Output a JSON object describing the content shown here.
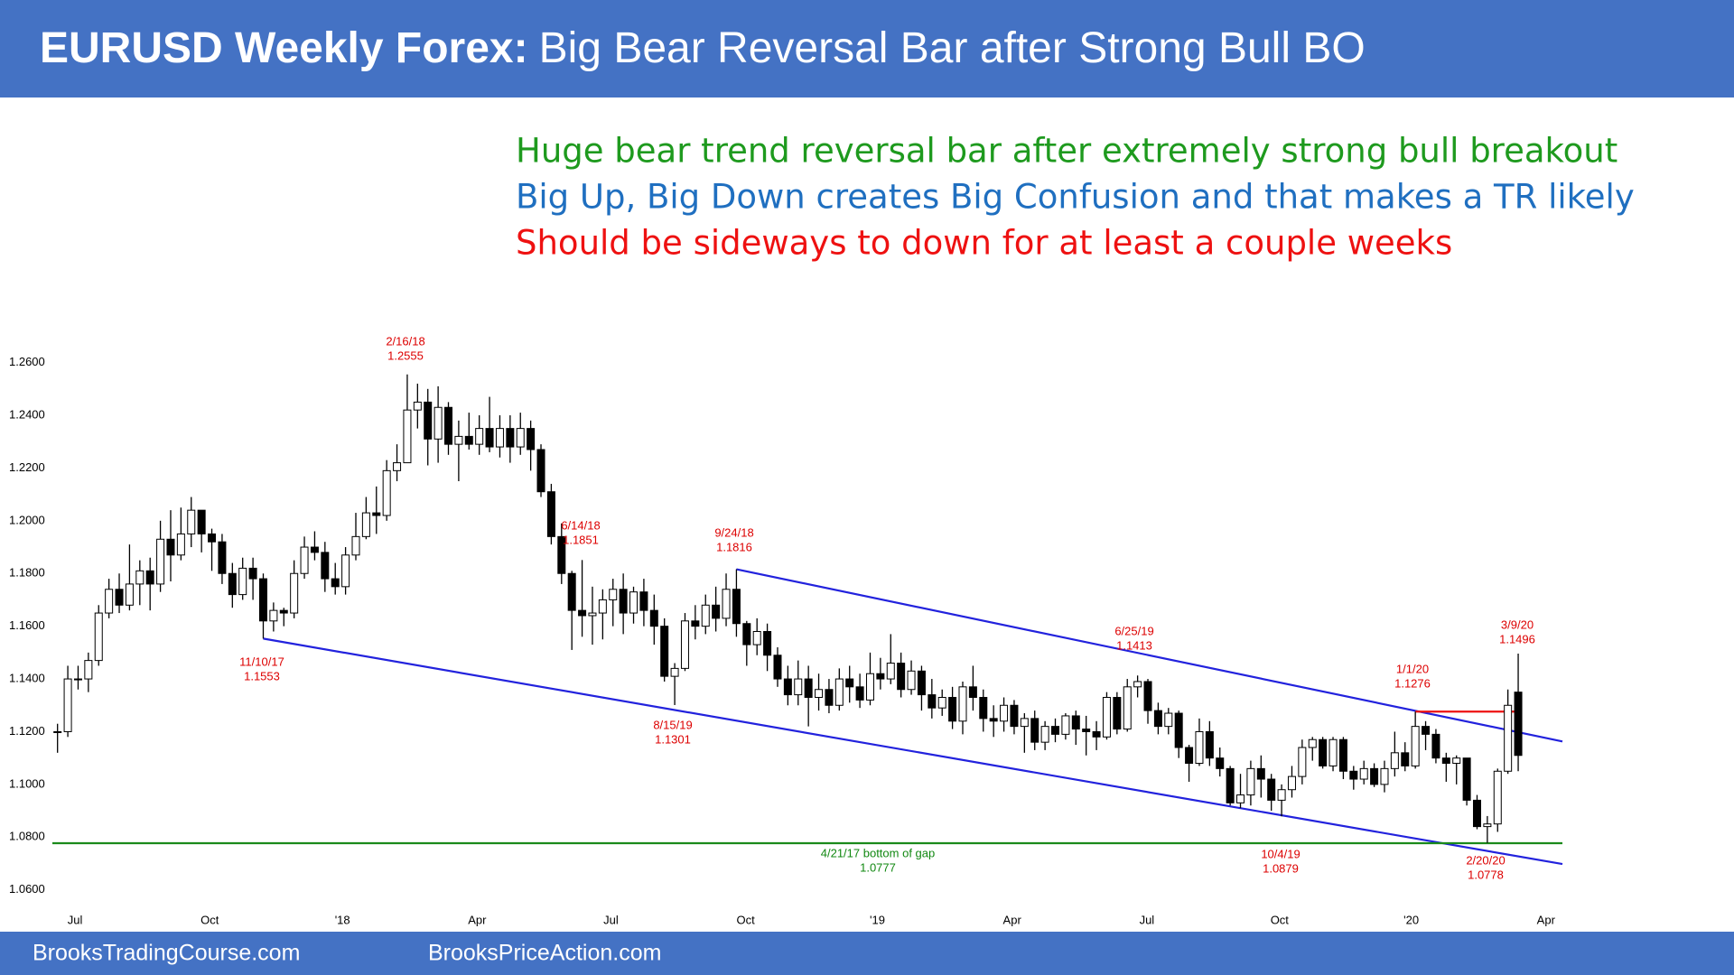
{
  "chart_data": {
    "type": "candlestick",
    "title": [
      "EURUSD Weekly Forex:",
      "Big Bear Reversal Bar after Strong Bull BO"
    ],
    "notes": [
      {
        "text": "Huge bear trend reversal bar after extremely strong bull breakout",
        "color": "#1e9a1e"
      },
      {
        "text": "Big Up, Big Down creates Big Confusion and that makes a TR likely",
        "color": "#1f6fc0"
      },
      {
        "text": "Should be sideways to down for at least a couple weeks",
        "color": "#ee1111"
      }
    ],
    "up_color": "#ffffff",
    "down_color": "#000000",
    "ylim": [
      1.055,
      1.27
    ],
    "yticks": [
      {
        "value": 1.06,
        "label": "1.0600"
      },
      {
        "value": 1.08,
        "label": "1.0800"
      },
      {
        "value": 1.1,
        "label": "1.1000"
      },
      {
        "value": 1.12,
        "label": "1.1200"
      },
      {
        "value": 1.14,
        "label": "1.1400"
      },
      {
        "value": 1.16,
        "label": "1.1600"
      },
      {
        "value": 1.18,
        "label": "1.1800"
      },
      {
        "value": 1.2,
        "label": "1.2000"
      },
      {
        "value": 1.22,
        "label": "1.2200"
      },
      {
        "value": 1.24,
        "label": "1.2400"
      },
      {
        "value": 1.26,
        "label": "1.2600"
      }
    ],
    "xlim": [
      -1,
      147
    ],
    "xticks": [
      {
        "value": 1.7,
        "label": "Jul"
      },
      {
        "value": 14.8,
        "label": "Oct"
      },
      {
        "value": 27.7,
        "label": "'18"
      },
      {
        "value": 40.8,
        "label": "Apr"
      },
      {
        "value": 53.8,
        "label": "Jul"
      },
      {
        "value": 66.9,
        "label": "Oct"
      },
      {
        "value": 79.7,
        "label": "'19"
      },
      {
        "value": 92.8,
        "label": "Apr"
      },
      {
        "value": 105.9,
        "label": "Jul"
      },
      {
        "value": 118.8,
        "label": "Oct"
      },
      {
        "value": 131.6,
        "label": "'20"
      },
      {
        "value": 144.7,
        "label": "Apr"
      }
    ],
    "ohlc": [
      [
        1.12,
        1.123,
        1.112,
        1.12
      ],
      [
        1.12,
        1.145,
        1.118,
        1.14
      ],
      [
        1.14,
        1.145,
        1.136,
        1.14
      ],
      [
        1.14,
        1.15,
        1.135,
        1.147
      ],
      [
        1.147,
        1.168,
        1.145,
        1.165
      ],
      [
        1.165,
        1.178,
        1.163,
        1.174
      ],
      [
        1.174,
        1.18,
        1.165,
        1.168
      ],
      [
        1.168,
        1.191,
        1.166,
        1.176
      ],
      [
        1.176,
        1.185,
        1.168,
        1.181
      ],
      [
        1.181,
        1.186,
        1.166,
        1.176
      ],
      [
        1.176,
        1.2,
        1.173,
        1.193
      ],
      [
        1.193,
        1.204,
        1.177,
        1.187
      ],
      [
        1.187,
        1.205,
        1.185,
        1.195
      ],
      [
        1.195,
        1.209,
        1.19,
        1.204
      ],
      [
        1.204,
        1.204,
        1.188,
        1.195
      ],
      [
        1.195,
        1.197,
        1.181,
        1.192
      ],
      [
        1.192,
        1.195,
        1.176,
        1.18
      ],
      [
        1.18,
        1.184,
        1.167,
        1.172
      ],
      [
        1.172,
        1.186,
        1.17,
        1.182
      ],
      [
        1.182,
        1.186,
        1.17,
        1.178
      ],
      [
        1.178,
        1.18,
        1.1553,
        1.162
      ],
      [
        1.162,
        1.169,
        1.158,
        1.166
      ],
      [
        1.166,
        1.167,
        1.16,
        1.165
      ],
      [
        1.165,
        1.185,
        1.163,
        1.18
      ],
      [
        1.18,
        1.194,
        1.178,
        1.19
      ],
      [
        1.19,
        1.196,
        1.185,
        1.188
      ],
      [
        1.188,
        1.192,
        1.173,
        1.178
      ],
      [
        1.178,
        1.184,
        1.172,
        1.175
      ],
      [
        1.175,
        1.19,
        1.172,
        1.187
      ],
      [
        1.187,
        1.203,
        1.185,
        1.194
      ],
      [
        1.194,
        1.209,
        1.193,
        1.203
      ],
      [
        1.203,
        1.213,
        1.195,
        1.202
      ],
      [
        1.202,
        1.223,
        1.2,
        1.219
      ],
      [
        1.219,
        1.229,
        1.215,
        1.222
      ],
      [
        1.222,
        1.2555,
        1.222,
        1.242
      ],
      [
        1.242,
        1.252,
        1.235,
        1.245
      ],
      [
        1.245,
        1.25,
        1.221,
        1.231
      ],
      [
        1.231,
        1.251,
        1.222,
        1.243
      ],
      [
        1.243,
        1.245,
        1.225,
        1.229
      ],
      [
        1.229,
        1.238,
        1.215,
        1.232
      ],
      [
        1.232,
        1.241,
        1.227,
        1.229
      ],
      [
        1.229,
        1.24,
        1.225,
        1.235
      ],
      [
        1.235,
        1.247,
        1.226,
        1.228
      ],
      [
        1.228,
        1.24,
        1.224,
        1.235
      ],
      [
        1.235,
        1.24,
        1.222,
        1.228
      ],
      [
        1.228,
        1.241,
        1.225,
        1.235
      ],
      [
        1.235,
        1.238,
        1.219,
        1.227
      ],
      [
        1.227,
        1.229,
        1.209,
        1.211
      ],
      [
        1.211,
        1.214,
        1.191,
        1.194
      ],
      [
        1.194,
        1.199,
        1.176,
        1.18
      ],
      [
        1.18,
        1.181,
        1.151,
        1.166
      ],
      [
        1.166,
        1.1851,
        1.156,
        1.164
      ],
      [
        1.164,
        1.175,
        1.153,
        1.165
      ],
      [
        1.165,
        1.174,
        1.155,
        1.17
      ],
      [
        1.17,
        1.178,
        1.16,
        1.174
      ],
      [
        1.174,
        1.18,
        1.157,
        1.165
      ],
      [
        1.165,
        1.175,
        1.161,
        1.173
      ],
      [
        1.173,
        1.178,
        1.16,
        1.166
      ],
      [
        1.166,
        1.172,
        1.153,
        1.16
      ],
      [
        1.16,
        1.163,
        1.139,
        1.141
      ],
      [
        1.141,
        1.146,
        1.1301,
        1.144
      ],
      [
        1.144,
        1.165,
        1.143,
        1.162
      ],
      [
        1.162,
        1.168,
        1.155,
        1.16
      ],
      [
        1.16,
        1.172,
        1.157,
        1.168
      ],
      [
        1.168,
        1.175,
        1.158,
        1.163
      ],
      [
        1.163,
        1.18,
        1.16,
        1.174
      ],
      [
        1.174,
        1.1816,
        1.156,
        1.161
      ],
      [
        1.161,
        1.162,
        1.145,
        1.153
      ],
      [
        1.153,
        1.163,
        1.149,
        1.158
      ],
      [
        1.158,
        1.161,
        1.143,
        1.149
      ],
      [
        1.149,
        1.152,
        1.137,
        1.14
      ],
      [
        1.14,
        1.145,
        1.13,
        1.134
      ],
      [
        1.134,
        1.147,
        1.13,
        1.14
      ],
      [
        1.14,
        1.145,
        1.122,
        1.133
      ],
      [
        1.133,
        1.142,
        1.128,
        1.136
      ],
      [
        1.136,
        1.14,
        1.127,
        1.13
      ],
      [
        1.13,
        1.144,
        1.128,
        1.14
      ],
      [
        1.14,
        1.145,
        1.131,
        1.137
      ],
      [
        1.137,
        1.142,
        1.129,
        1.132
      ],
      [
        1.132,
        1.15,
        1.13,
        1.142
      ],
      [
        1.142,
        1.148,
        1.136,
        1.14
      ],
      [
        1.14,
        1.157,
        1.138,
        1.146
      ],
      [
        1.146,
        1.15,
        1.133,
        1.136
      ],
      [
        1.136,
        1.147,
        1.134,
        1.143
      ],
      [
        1.143,
        1.145,
        1.128,
        1.134
      ],
      [
        1.134,
        1.14,
        1.125,
        1.129
      ],
      [
        1.129,
        1.136,
        1.126,
        1.133
      ],
      [
        1.133,
        1.137,
        1.121,
        1.124
      ],
      [
        1.124,
        1.139,
        1.119,
        1.137
      ],
      [
        1.137,
        1.145,
        1.128,
        1.133
      ],
      [
        1.133,
        1.136,
        1.12,
        1.125
      ],
      [
        1.125,
        1.13,
        1.118,
        1.124
      ],
      [
        1.124,
        1.133,
        1.12,
        1.13
      ],
      [
        1.13,
        1.132,
        1.119,
        1.122
      ],
      [
        1.122,
        1.127,
        1.112,
        1.125
      ],
      [
        1.125,
        1.128,
        1.113,
        1.116
      ],
      [
        1.116,
        1.124,
        1.113,
        1.122
      ],
      [
        1.122,
        1.125,
        1.116,
        1.119
      ],
      [
        1.119,
        1.127,
        1.117,
        1.126
      ],
      [
        1.126,
        1.128,
        1.115,
        1.121
      ],
      [
        1.121,
        1.126,
        1.111,
        1.12
      ],
      [
        1.12,
        1.124,
        1.113,
        1.118
      ],
      [
        1.118,
        1.135,
        1.117,
        1.133
      ],
      [
        1.133,
        1.135,
        1.119,
        1.121
      ],
      [
        1.121,
        1.14,
        1.12,
        1.137
      ],
      [
        1.137,
        1.1413,
        1.133,
        1.139
      ],
      [
        1.139,
        1.14,
        1.123,
        1.128
      ],
      [
        1.128,
        1.131,
        1.119,
        1.122
      ],
      [
        1.122,
        1.129,
        1.119,
        1.127
      ],
      [
        1.127,
        1.128,
        1.11,
        1.114
      ],
      [
        1.114,
        1.115,
        1.101,
        1.108
      ],
      [
        1.108,
        1.125,
        1.107,
        1.12
      ],
      [
        1.12,
        1.124,
        1.107,
        1.11
      ],
      [
        1.11,
        1.114,
        1.103,
        1.106
      ],
      [
        1.106,
        1.107,
        1.092,
        1.093
      ],
      [
        1.093,
        1.104,
        1.091,
        1.096
      ],
      [
        1.096,
        1.109,
        1.092,
        1.106
      ],
      [
        1.106,
        1.111,
        1.095,
        1.102
      ],
      [
        1.102,
        1.104,
        1.09,
        1.094
      ],
      [
        1.094,
        1.1,
        1.0879,
        1.098
      ],
      [
        1.098,
        1.107,
        1.095,
        1.103
      ],
      [
        1.103,
        1.117,
        1.1,
        1.114
      ],
      [
        1.114,
        1.118,
        1.109,
        1.117
      ],
      [
        1.117,
        1.118,
        1.106,
        1.107
      ],
      [
        1.107,
        1.118,
        1.105,
        1.117
      ],
      [
        1.117,
        1.118,
        1.102,
        1.105
      ],
      [
        1.105,
        1.107,
        1.098,
        1.102
      ],
      [
        1.102,
        1.109,
        1.1,
        1.106
      ],
      [
        1.106,
        1.108,
        1.099,
        1.1
      ],
      [
        1.1,
        1.109,
        1.097,
        1.106
      ],
      [
        1.106,
        1.12,
        1.103,
        1.112
      ],
      [
        1.112,
        1.116,
        1.105,
        1.107
      ],
      [
        1.107,
        1.1276,
        1.106,
        1.122
      ],
      [
        1.122,
        1.124,
        1.113,
        1.119
      ],
      [
        1.119,
        1.121,
        1.108,
        1.11
      ],
      [
        1.11,
        1.112,
        1.101,
        1.108
      ],
      [
        1.108,
        1.111,
        1.1,
        1.11
      ],
      [
        1.11,
        1.11,
        1.092,
        1.094
      ],
      [
        1.094,
        1.096,
        1.083,
        1.084
      ],
      [
        1.084,
        1.088,
        1.0778,
        1.085
      ],
      [
        1.085,
        1.106,
        1.082,
        1.105
      ],
      [
        1.105,
        1.136,
        1.104,
        1.13
      ],
      [
        1.135,
        1.1496,
        1.105,
        1.111
      ]
    ],
    "trendlines": [
      {
        "from": [
          66,
          1.1816
        ],
        "to": [
          146.3,
          1.1163
        ],
        "color": "#2222dd"
      },
      {
        "from": [
          20,
          1.1553
        ],
        "to": [
          146.3,
          1.0698
        ],
        "color": "#2222dd"
      },
      {
        "from": [
          132,
          1.1276
        ],
        "to": [
          142,
          1.1276
        ],
        "color": "#ee1111"
      },
      {
        "from": [
          -0.5,
          1.0777
        ],
        "to": [
          146.3,
          1.0777
        ],
        "color": "#1a8a1a"
      }
    ],
    "annotations": [
      {
        "text": [
          "2/16/18",
          "1.2555"
        ],
        "color": "#dd0000"
      },
      {
        "text": [
          "6/14/18",
          "1.1851"
        ],
        "color": "#dd0000"
      },
      {
        "text": [
          "9/24/18",
          "1.1816"
        ],
        "color": "#dd0000"
      },
      {
        "text": [
          "11/10/17",
          "1.1553"
        ],
        "color": "#dd0000"
      },
      {
        "text": [
          "8/15/19",
          "1.1301"
        ],
        "color": "#dd0000"
      },
      {
        "text": [
          "6/25/19",
          "1.1413"
        ],
        "color": "#dd0000"
      },
      {
        "text": [
          "1/1/20",
          "1.1276"
        ],
        "color": "#dd0000"
      },
      {
        "text": [
          "3/9/20",
          "1.1496"
        ],
        "color": "#dd0000"
      },
      {
        "text": [
          "10/4/19",
          "1.0879"
        ],
        "color": "#dd0000"
      },
      {
        "text": [
          "2/20/20",
          "1.0778"
        ],
        "color": "#dd0000"
      },
      {
        "text": [
          "4/21/17 bottom of gap",
          "1.0777"
        ],
        "color": "#118811"
      }
    ]
  },
  "footer": [
    "BrooksTradingCourse.com",
    "BrooksPriceAction.com"
  ]
}
